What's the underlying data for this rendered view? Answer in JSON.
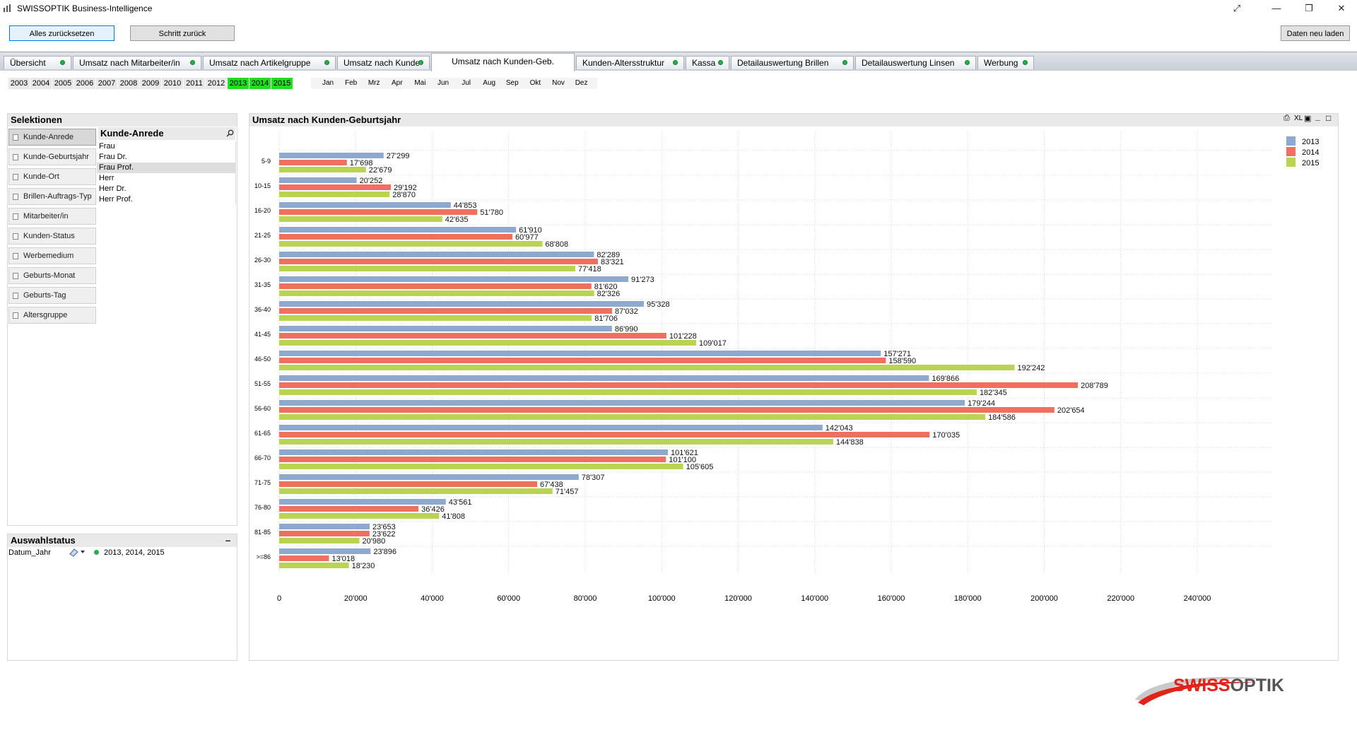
{
  "window": {
    "title": "SWISSOPTIK Business-Intelligence",
    "controls": [
      "⤢",
      "—",
      "❐",
      "✕"
    ]
  },
  "toolbar": {
    "reset_label": "Alles zurücksetzen",
    "back_label": "Schritt zurück",
    "reload_label": "Daten neu laden"
  },
  "tabs": [
    {
      "label": "Übersicht"
    },
    {
      "label": "Umsatz nach Mitarbeiter/in"
    },
    {
      "label": "Umsatz nach Artikelgruppe"
    },
    {
      "label": "Umsatz nach Kunde"
    },
    {
      "label": "Umsatz nach Kunden-Geb.",
      "active": true
    },
    {
      "label": "Kunden-Altersstruktur"
    },
    {
      "label": "Kassa"
    },
    {
      "label": "Detailauswertung Brillen"
    },
    {
      "label": "Detailauswertung Linsen"
    },
    {
      "label": "Werbung"
    }
  ],
  "years": [
    "2003",
    "2004",
    "2005",
    "2006",
    "2007",
    "2008",
    "2009",
    "2010",
    "2011",
    "2012",
    "2013",
    "2014",
    "2015"
  ],
  "selected_years": [
    "2013",
    "2014",
    "2015"
  ],
  "months": [
    "Jan",
    "Feb",
    "Mrz",
    "Apr",
    "Mai",
    "Jun",
    "Jul",
    "Aug",
    "Sep",
    "Okt",
    "Nov",
    "Dez"
  ],
  "selections": {
    "title": "Selektionen",
    "buttons": [
      "Kunde-Anrede",
      "Kunde-Geburtsjahr",
      "Kunde-Ort",
      "Brillen-Auftrags-Typ",
      "Mitarbeiter/in",
      "Kunden-Status",
      "Werbemedium",
      "Geburts-Monat",
      "Geburts-Tag",
      "Altersgruppe"
    ],
    "active_button": "Kunde-Anrede",
    "listbox": {
      "title": "Kunde-Anrede",
      "items": [
        "Frau",
        "Frau Dr.",
        "Frau Prof.",
        "Herr",
        "Herr Dr.",
        "Herr Prof."
      ],
      "highlighted": "Frau Prof."
    }
  },
  "status": {
    "title": "Auswahlstatus",
    "field": "Datum_Jahr",
    "value": "2013, 2014, 2015"
  },
  "chart_panel": {
    "title": "Umsatz nach Kunden-Geburtsjahr",
    "tools": [
      "⎙",
      "XL",
      "▣",
      "_",
      "□"
    ]
  },
  "brand": {
    "swiss": "SWISS",
    "optik": "OPTIK"
  },
  "chart_data": {
    "type": "bar",
    "orientation": "horizontal",
    "categories": [
      "5-9",
      "10-15",
      "16-20",
      "21-25",
      "26-30",
      "31-35",
      "36-40",
      "41-45",
      "46-50",
      "51-55",
      "56-60",
      "61-65",
      "66-70",
      "71-75",
      "76-80",
      "81-85",
      ">=86"
    ],
    "series": [
      {
        "name": "2013",
        "color": "#8ea9d0",
        "values": [
          27299,
          20252,
          44853,
          61910,
          82289,
          91273,
          95328,
          86990,
          157271,
          169866,
          179244,
          142043,
          101621,
          78307,
          43561,
          23653,
          23896
        ],
        "labels": [
          "27'299",
          "20'252",
          "44'853",
          "61'910",
          "82'289",
          "91'273",
          "95'328",
          "86'990",
          "157'271",
          "169'866",
          "179'244",
          "142'043",
          "101'621",
          "78'307",
          "43'561",
          "23'653",
          "23'896"
        ]
      },
      {
        "name": "2014",
        "color": "#f07060",
        "values": [
          17698,
          29192,
          51780,
          60977,
          83321,
          81620,
          87032,
          101228,
          158590,
          208789,
          202654,
          170035,
          101100,
          67438,
          36426,
          23622,
          13018
        ],
        "labels": [
          "17'698",
          "29'192",
          "51'780",
          "60'977",
          "83'321",
          "81'620",
          "87'032",
          "101'228",
          "158'590",
          "208'789",
          "202'654",
          "170'035",
          "101'100",
          "67'438",
          "36'426",
          "23'622",
          "13'018"
        ]
      },
      {
        "name": "2015",
        "color": "#b8d452",
        "values": [
          22679,
          28870,
          42635,
          68808,
          77418,
          82326,
          81706,
          109017,
          192242,
          182345,
          184586,
          144838,
          105605,
          71457,
          41808,
          20980,
          18230
        ],
        "labels": [
          "22'679",
          "28'870",
          "42'635",
          "68'808",
          "77'418",
          "82'326",
          "81'706",
          "109'017",
          "192'242",
          "182'345",
          "184'586",
          "144'838",
          "105'605",
          "71'457",
          "41'808",
          "20'980",
          "18'230"
        ]
      }
    ],
    "x_ticks": [
      0,
      20000,
      40000,
      60000,
      80000,
      100000,
      120000,
      140000,
      160000,
      180000,
      200000,
      220000,
      240000
    ],
    "x_tick_labels": [
      "0",
      "20'000",
      "40'000",
      "60'000",
      "80'000",
      "100'000",
      "120'000",
      "140'000",
      "160'000",
      "180'000",
      "200'000",
      "220'000",
      "240'000"
    ],
    "xlim": [
      0,
      260000
    ],
    "legend": "top-right",
    "grid": true
  }
}
